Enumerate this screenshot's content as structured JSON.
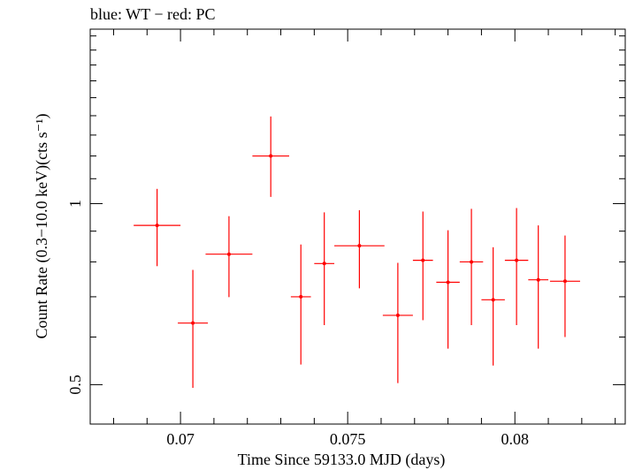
{
  "chart_data": {
    "type": "scatter",
    "title": "blue: WT − red: PC",
    "xlabel": "Time Since 59133.0 MJD (days)",
    "ylabel": "Count Rate (0.3−10.0 keV)(cts s⁻¹)",
    "x_scale": "linear",
    "y_scale": "log",
    "xlim": [
      0.0673,
      0.0833
    ],
    "ylim": [
      0.43,
      1.95
    ],
    "x_ticks": [
      {
        "value": 0.07,
        "label": "0.07"
      },
      {
        "value": 0.075,
        "label": "0.075"
      },
      {
        "value": 0.08,
        "label": "0.08"
      }
    ],
    "y_ticks": [
      {
        "value": 0.5,
        "label": "0.5"
      },
      {
        "value": 1,
        "label": "1"
      }
    ],
    "grid": false,
    "series": [
      {
        "color": "#ff0000",
        "points": [
          {
            "x": 0.0693,
            "xerr": 0.0007,
            "y": 0.92,
            "ylo": 0.787,
            "yhi": 1.058
          },
          {
            "x": 0.07037,
            "xerr": 0.00045,
            "y": 0.633,
            "ylo": 0.494,
            "yhi": 0.776
          },
          {
            "x": 0.07145,
            "xerr": 0.0007,
            "y": 0.824,
            "ylo": 0.699,
            "yhi": 0.953
          },
          {
            "x": 0.0727,
            "xerr": 0.00055,
            "y": 1.2,
            "ylo": 1.026,
            "yhi": 1.396
          },
          {
            "x": 0.0736,
            "xerr": 0.0003,
            "y": 0.7,
            "ylo": 0.54,
            "yhi": 0.855
          },
          {
            "x": 0.0743,
            "xerr": 0.0003,
            "y": 0.795,
            "ylo": 0.628,
            "yhi": 0.967
          },
          {
            "x": 0.07535,
            "xerr": 0.00075,
            "y": 0.851,
            "ylo": 0.723,
            "yhi": 0.975
          },
          {
            "x": 0.0765,
            "xerr": 0.00045,
            "y": 0.652,
            "ylo": 0.503,
            "yhi": 0.797
          },
          {
            "x": 0.07725,
            "xerr": 0.0003,
            "y": 0.805,
            "ylo": 0.64,
            "yhi": 0.97
          },
          {
            "x": 0.078,
            "xerr": 0.00035,
            "y": 0.74,
            "ylo": 0.574,
            "yhi": 0.903
          },
          {
            "x": 0.0787,
            "xerr": 0.00035,
            "y": 0.8,
            "ylo": 0.628,
            "yhi": 0.98
          },
          {
            "x": 0.07935,
            "xerr": 0.00035,
            "y": 0.692,
            "ylo": 0.538,
            "yhi": 0.846
          },
          {
            "x": 0.08005,
            "xerr": 0.00035,
            "y": 0.805,
            "ylo": 0.628,
            "yhi": 0.983
          },
          {
            "x": 0.0807,
            "xerr": 0.0003,
            "y": 0.747,
            "ylo": 0.574,
            "yhi": 0.92
          },
          {
            "x": 0.0815,
            "xerr": 0.00045,
            "y": 0.743,
            "ylo": 0.6,
            "yhi": 0.885
          }
        ]
      }
    ]
  }
}
